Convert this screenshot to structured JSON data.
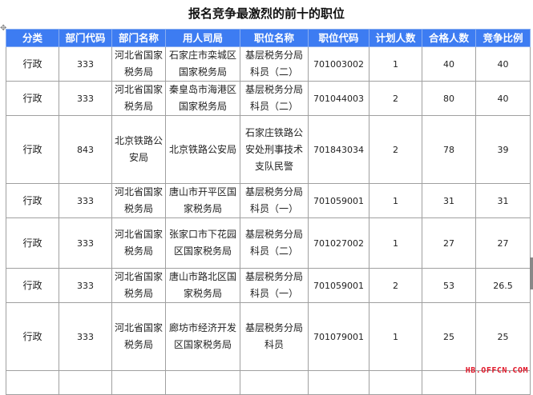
{
  "title": "报名竞争最激烈的前十的职位",
  "headers": [
    "分类",
    "部门代码",
    "部门名称",
    "用人司局",
    "职位名称",
    "职位代码",
    "计划人数",
    "合格人数",
    "竞争比例"
  ],
  "rows": [
    [
      "行政",
      "333",
      "河北省国家税务局",
      "石家庄市栾城区国家税务局",
      "基层税务分局科员（二）",
      "701003002",
      "1",
      "40",
      "40"
    ],
    [
      "行政",
      "333",
      "河北省国家税务局",
      "秦皇岛市海港区国家税务局",
      "基层税务分局科员（二）",
      "701044003",
      "2",
      "80",
      "40"
    ],
    [
      "行政",
      "843",
      "北京铁路公安局",
      "北京铁路公安局",
      "石家庄铁路公安处刑事技术支队民警",
      "701843034",
      "2",
      "78",
      "39"
    ],
    [
      "行政",
      "333",
      "河北省国家税务局",
      "唐山市开平区国家税务局",
      "基层税务分局科员（一）",
      "701059001",
      "1",
      "31",
      "31"
    ],
    [
      "行政",
      "333",
      "河北省国家税务局",
      "张家口市下花园区国家税务局",
      "基层税务分局科员（二）",
      "701027002",
      "1",
      "27",
      "27"
    ],
    [
      "行政",
      "333",
      "河北省国家税务局",
      "唐山市路北区国家税务局",
      "基层税务分局科员（一）",
      "701059001",
      "2",
      "53",
      "26.5"
    ],
    [
      "行政",
      "333",
      "河北省国家税务局",
      "廊坊市经济开发区国家税务局",
      "基层税务分局科员",
      "701079001",
      "1",
      "25",
      "25"
    ]
  ],
  "watermark": "HB.OFFCN.COM",
  "colors": {
    "header_bg": "#3d7cf2",
    "watermark": "#e0182a"
  }
}
